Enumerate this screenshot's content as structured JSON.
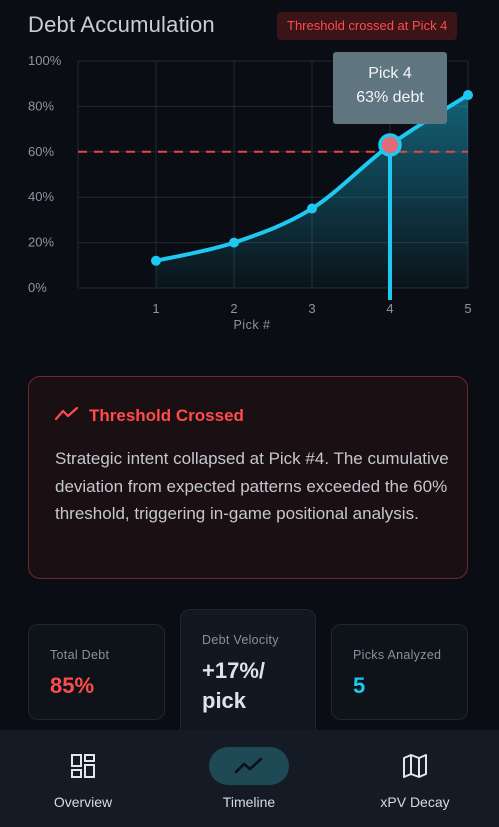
{
  "header": {
    "title": "Debt Accumulation",
    "badge": "Threshold crossed at Pick 4"
  },
  "chart_data": {
    "type": "line",
    "x": [
      1,
      2,
      3,
      4,
      5
    ],
    "values": [
      12,
      20,
      35,
      63,
      85
    ],
    "xlabel": "Pick #",
    "ylabel": "",
    "ylim": [
      0,
      100
    ],
    "y_ticks": [
      "0%",
      "20%",
      "40%",
      "60%",
      "80%",
      "100%"
    ],
    "x_ticks": [
      "1",
      "2",
      "3",
      "4",
      "5"
    ],
    "threshold": 60,
    "highlight_index": 3,
    "grid": true,
    "colors": {
      "line": "#1ec8f0",
      "threshold": "#e04848",
      "grid": "#232a33"
    }
  },
  "tooltip": {
    "line1": "Pick 4",
    "line2": "63% debt"
  },
  "alert": {
    "title": "Threshold Crossed",
    "body": "Strategic intent collapsed at Pick #4. The cumulative deviation from expected patterns exceeded the 60% threshold, triggering in-game positional analysis.",
    "icon": "trending-up-icon"
  },
  "stats": {
    "total_debt": {
      "label": "Total Debt",
      "value": "85%"
    },
    "debt_velocity": {
      "label": "Debt Velocity",
      "value": "+17%/ pick"
    },
    "picks_analyzed": {
      "label": "Picks Analyzed",
      "value": "5"
    }
  },
  "nav": {
    "items": [
      {
        "label": "Overview",
        "icon": "dashboard-icon"
      },
      {
        "label": "Timeline",
        "icon": "trend-line-icon"
      },
      {
        "label": "xPV Decay",
        "icon": "map-icon"
      }
    ],
    "active": "Timeline"
  }
}
